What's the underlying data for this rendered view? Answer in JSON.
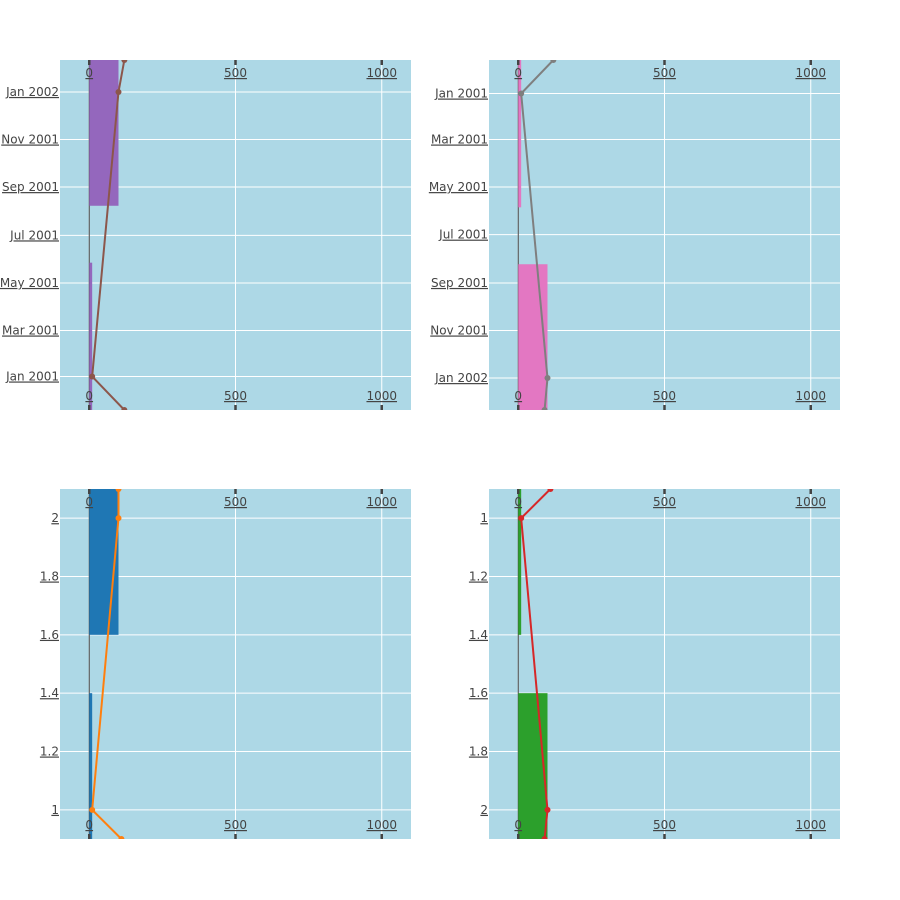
{
  "chart_data": [
    {
      "type": "bar",
      "orientation": "horizontal",
      "y_axis_type": "date",
      "y_reversed": false,
      "xlim": [
        -100,
        1100
      ],
      "ylim": [
        "2000-11-19",
        "2002-02-11"
      ],
      "x_ticks": [
        "0",
        "500",
        "1000"
      ],
      "y_ticks": [
        {
          "value": "2001-01-01",
          "label": "Jan 2001"
        },
        {
          "value": "2001-03-01",
          "label": "Mar 2001"
        },
        {
          "value": "2001-05-01",
          "label": "May 2001"
        },
        {
          "value": "2001-07-01",
          "label": "Jul 2001"
        },
        {
          "value": "2001-09-01",
          "label": "Sep 2001"
        },
        {
          "value": "2001-11-01",
          "label": "Nov 2001"
        },
        {
          "value": "2002-01-01",
          "label": "Jan 2002"
        }
      ],
      "bars": {
        "color": "#9467bd",
        "y": [
          "2001-01-01",
          "2002-01-01"
        ],
        "x": [
          10,
          100
        ]
      },
      "line": {
        "color": "#8c564b",
        "x": [
          120,
          10,
          100,
          120
        ],
        "y": [
          "2000-11-19",
          "2001-01-01",
          "2002-01-01",
          "2002-02-11"
        ]
      }
    },
    {
      "type": "bar",
      "orientation": "horizontal",
      "y_axis_type": "date",
      "y_reversed": true,
      "xlim": [
        -100,
        1100
      ],
      "ylim": [
        "2000-11-19",
        "2002-02-11"
      ],
      "x_ticks": [
        "0",
        "500",
        "1000"
      ],
      "y_ticks": [
        {
          "value": "2001-01-01",
          "label": "Jan 2001"
        },
        {
          "value": "2001-03-01",
          "label": "Mar 2001"
        },
        {
          "value": "2001-05-01",
          "label": "May 2001"
        },
        {
          "value": "2001-07-01",
          "label": "Jul 2001"
        },
        {
          "value": "2001-09-01",
          "label": "Sep 2001"
        },
        {
          "value": "2001-11-01",
          "label": "Nov 2001"
        },
        {
          "value": "2002-01-01",
          "label": "Jan 2002"
        }
      ],
      "bars": {
        "color": "#e377c2",
        "y": [
          "2001-01-01",
          "2002-01-01"
        ],
        "x": [
          10,
          100
        ]
      },
      "line": {
        "color": "#7f7f7f",
        "x": [
          120,
          10,
          100,
          90
        ],
        "y": [
          "2000-11-19",
          "2001-01-01",
          "2002-01-01",
          "2002-02-11"
        ]
      }
    },
    {
      "type": "bar",
      "orientation": "horizontal",
      "y_axis_type": "linear",
      "y_reversed": false,
      "xlim": [
        -100,
        1100
      ],
      "ylim": [
        0.9,
        2.1
      ],
      "x_ticks": [
        "0",
        "500",
        "1000"
      ],
      "y_ticks": [
        {
          "value": 1,
          "label": "1"
        },
        {
          "value": 1.2,
          "label": "1.2"
        },
        {
          "value": 1.4,
          "label": "1.4"
        },
        {
          "value": 1.6,
          "label": "1.6"
        },
        {
          "value": 1.8,
          "label": "1.8"
        },
        {
          "value": 2,
          "label": "2"
        }
      ],
      "bars": {
        "color": "#1f77b4",
        "y": [
          1,
          2
        ],
        "x": [
          10,
          100
        ]
      },
      "line": {
        "color": "#ff7f0e",
        "x": [
          110,
          10,
          100,
          100
        ],
        "y": [
          0.9,
          1,
          2,
          2.1
        ]
      }
    },
    {
      "type": "bar",
      "orientation": "horizontal",
      "y_axis_type": "linear",
      "y_reversed": true,
      "xlim": [
        -100,
        1100
      ],
      "ylim": [
        0.9,
        2.1
      ],
      "x_ticks": [
        "0",
        "500",
        "1000"
      ],
      "y_ticks": [
        {
          "value": 1,
          "label": "1"
        },
        {
          "value": 1.2,
          "label": "1.2"
        },
        {
          "value": 1.4,
          "label": "1.4"
        },
        {
          "value": 1.6,
          "label": "1.6"
        },
        {
          "value": 1.8,
          "label": "1.8"
        },
        {
          "value": 2,
          "label": "2"
        }
      ],
      "bars": {
        "color": "#2ca02c",
        "y": [
          1,
          2
        ],
        "x": [
          10,
          100
        ]
      },
      "line": {
        "color": "#d62728",
        "x": [
          110,
          10,
          100,
          90
        ],
        "y": [
          0.9,
          1,
          2,
          2.1
        ]
      }
    }
  ],
  "style": {
    "plot_bg": "#add8e6",
    "grid_color": "#ffffff",
    "zeroline_color": "#444444",
    "tick_text_color": "#444444"
  }
}
